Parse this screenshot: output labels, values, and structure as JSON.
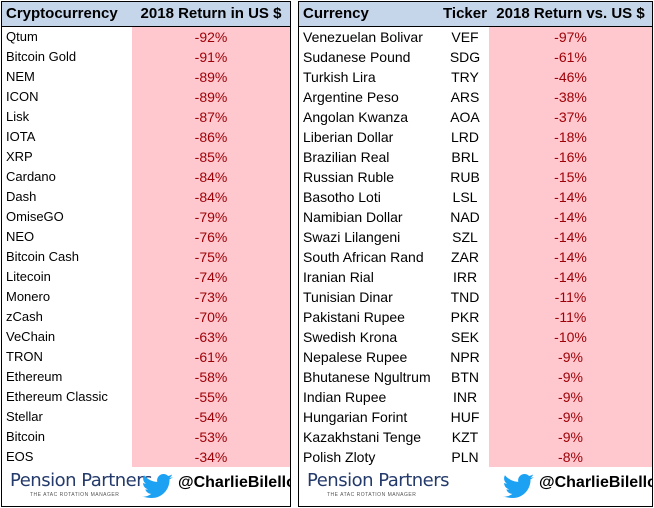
{
  "left_table": {
    "headers": [
      "Cryptocurrency",
      "2018 Return in US $"
    ],
    "rows": [
      [
        "Qtum",
        "-92%"
      ],
      [
        "Bitcoin Gold",
        "-91%"
      ],
      [
        "NEM",
        "-89%"
      ],
      [
        "ICON",
        "-89%"
      ],
      [
        "Lisk",
        "-87%"
      ],
      [
        "IOTA",
        "-86%"
      ],
      [
        "XRP",
        "-85%"
      ],
      [
        "Cardano",
        "-84%"
      ],
      [
        "Dash",
        "-84%"
      ],
      [
        "OmiseGO",
        "-79%"
      ],
      [
        "NEO",
        "-76%"
      ],
      [
        "Bitcoin Cash",
        "-75%"
      ],
      [
        "Litecoin",
        "-74%"
      ],
      [
        "Monero",
        "-73%"
      ],
      [
        "zCash",
        "-70%"
      ],
      [
        "VeChain",
        "-63%"
      ],
      [
        "TRON",
        "-61%"
      ],
      [
        "Ethereum",
        "-58%"
      ],
      [
        "Ethereum Classic",
        "-55%"
      ],
      [
        "Stellar",
        "-54%"
      ],
      [
        "Bitcoin",
        "-53%"
      ],
      [
        "EOS",
        "-34%"
      ]
    ]
  },
  "right_table": {
    "headers": [
      "Currency",
      "Ticker",
      "2018 Return vs. US $"
    ],
    "rows": [
      [
        "Venezuelan Bolivar",
        "VEF",
        "-97%"
      ],
      [
        "Sudanese Pound",
        "SDG",
        "-61%"
      ],
      [
        "Turkish Lira",
        "TRY",
        "-46%"
      ],
      [
        "Argentine Peso",
        "ARS",
        "-38%"
      ],
      [
        "Angolan Kwanza",
        "AOA",
        "-37%"
      ],
      [
        "Liberian Dollar",
        "LRD",
        "-18%"
      ],
      [
        "Brazilian Real",
        "BRL",
        "-16%"
      ],
      [
        "Russian Ruble",
        "RUB",
        "-15%"
      ],
      [
        "Basotho Loti",
        "LSL",
        "-14%"
      ],
      [
        "Namibian Dollar",
        "NAD",
        "-14%"
      ],
      [
        "Swazi Lilangeni",
        "SZL",
        "-14%"
      ],
      [
        "South African Rand",
        "ZAR",
        "-14%"
      ],
      [
        "Iranian Rial",
        "IRR",
        "-14%"
      ],
      [
        "Tunisian Dinar",
        "TND",
        "-11%"
      ],
      [
        "Pakistani Rupee",
        "PKR",
        "-11%"
      ],
      [
        "Swedish Krona",
        "SEK",
        "-10%"
      ],
      [
        "Nepalese Rupee",
        "NPR",
        "-9%"
      ],
      [
        "Bhutanese Ngultrum",
        "BTN",
        "-9%"
      ],
      [
        "Indian Rupee",
        "INR",
        "-9%"
      ],
      [
        "Hungarian Forint",
        "HUF",
        "-9%"
      ],
      [
        "Kazakhstani Tenge",
        "KZT",
        "-9%"
      ],
      [
        "Polish Zloty",
        "PLN",
        "-8%"
      ]
    ]
  },
  "footer": {
    "logo": "Pension Partners",
    "tagline": "THE ATAC ROTATION MANAGER",
    "handle": "@CharlieBilello"
  }
}
